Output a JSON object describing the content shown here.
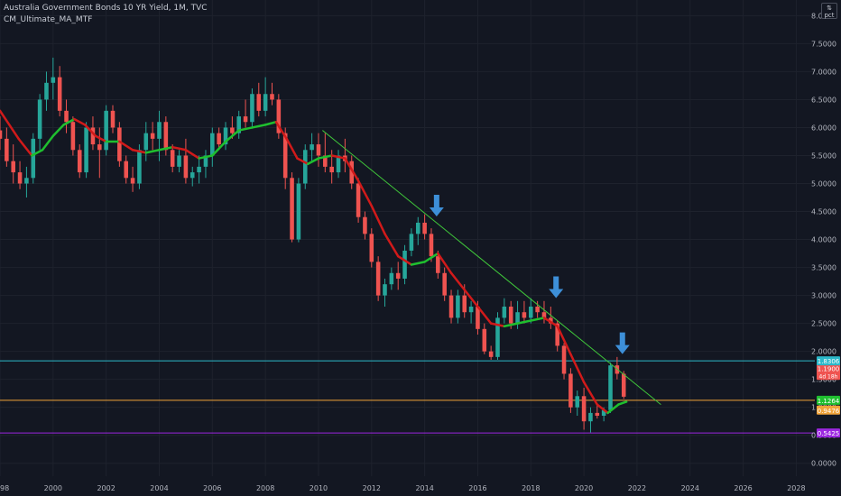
{
  "chart_data": {
    "type": "candlestick",
    "title": "Australia Government Bonds 10 YR Yield, 1M, TVC",
    "indicator_label": "CM_Ultimate_MA_MTF",
    "unit_badge": {
      "symbol": "⇅",
      "text": "pct"
    },
    "x_tick_labels": [
      "1998",
      "2000",
      "2002",
      "2004",
      "2006",
      "2008",
      "2010",
      "2012",
      "2014",
      "2016",
      "2018",
      "2020",
      "2022",
      "2024",
      "2026",
      "2028"
    ],
    "y_tick_labels": [
      "0.0000",
      "0.5000",
      "1.0000",
      "1.5000",
      "2.0000",
      "2.5000",
      "3.0000",
      "3.5000",
      "4.0000",
      "4.5000",
      "5.0000",
      "5.5000",
      "6.0000",
      "6.5000",
      "7.0000",
      "7.5000",
      "8.0000"
    ],
    "xlim": [
      1998.0,
      2028.7
    ],
    "ylim": [
      -0.23,
      8.28
    ],
    "colors": {
      "background": "#131722",
      "grid": "#1e222d",
      "up": "#26a69a",
      "down": "#ef5350",
      "ma_up": "#1fbf2f",
      "ma_down": "#d11a1a",
      "trendline": "#3fc43a",
      "arrow": "#3d8fd8",
      "axis_text": "#b2b5be"
    },
    "candles": [
      {
        "t": 1998.0,
        "o": 5.95,
        "h": 6.2,
        "l": 5.6,
        "c": 5.8
      },
      {
        "t": 1998.25,
        "o": 5.8,
        "h": 6.0,
        "l": 5.3,
        "c": 5.4
      },
      {
        "t": 1998.5,
        "o": 5.4,
        "h": 5.7,
        "l": 5.0,
        "c": 5.2
      },
      {
        "t": 1998.75,
        "o": 5.2,
        "h": 5.4,
        "l": 4.9,
        "c": 5.0
      },
      {
        "t": 1999.0,
        "o": 5.0,
        "h": 5.3,
        "l": 4.75,
        "c": 5.1
      },
      {
        "t": 1999.25,
        "o": 5.1,
        "h": 5.9,
        "l": 5.0,
        "c": 5.8
      },
      {
        "t": 1999.5,
        "o": 5.8,
        "h": 6.6,
        "l": 5.6,
        "c": 6.5
      },
      {
        "t": 1999.75,
        "o": 6.5,
        "h": 7.0,
        "l": 6.3,
        "c": 6.8
      },
      {
        "t": 2000.0,
        "o": 6.8,
        "h": 7.25,
        "l": 6.5,
        "c": 6.9
      },
      {
        "t": 2000.25,
        "o": 6.9,
        "h": 7.1,
        "l": 6.2,
        "c": 6.3
      },
      {
        "t": 2000.5,
        "o": 6.3,
        "h": 6.5,
        "l": 5.9,
        "c": 6.1
      },
      {
        "t": 2000.75,
        "o": 6.1,
        "h": 6.2,
        "l": 5.5,
        "c": 5.6
      },
      {
        "t": 2001.0,
        "o": 5.6,
        "h": 5.7,
        "l": 5.1,
        "c": 5.2
      },
      {
        "t": 2001.25,
        "o": 5.2,
        "h": 6.1,
        "l": 5.1,
        "c": 6.0
      },
      {
        "t": 2001.5,
        "o": 6.0,
        "h": 6.2,
        "l": 5.6,
        "c": 5.7
      },
      {
        "t": 2001.75,
        "o": 5.7,
        "h": 6.0,
        "l": 5.1,
        "c": 5.6
      },
      {
        "t": 2002.0,
        "o": 5.6,
        "h": 6.4,
        "l": 5.5,
        "c": 6.3
      },
      {
        "t": 2002.25,
        "o": 6.3,
        "h": 6.4,
        "l": 5.9,
        "c": 6.0
      },
      {
        "t": 2002.5,
        "o": 6.0,
        "h": 6.1,
        "l": 5.3,
        "c": 5.4
      },
      {
        "t": 2002.75,
        "o": 5.4,
        "h": 5.5,
        "l": 5.0,
        "c": 5.1
      },
      {
        "t": 2003.0,
        "o": 5.1,
        "h": 5.3,
        "l": 4.85,
        "c": 5.0
      },
      {
        "t": 2003.25,
        "o": 5.0,
        "h": 5.7,
        "l": 4.9,
        "c": 5.6
      },
      {
        "t": 2003.5,
        "o": 5.6,
        "h": 6.1,
        "l": 5.4,
        "c": 5.9
      },
      {
        "t": 2003.75,
        "o": 5.9,
        "h": 6.1,
        "l": 5.6,
        "c": 5.8
      },
      {
        "t": 2004.0,
        "o": 5.8,
        "h": 6.3,
        "l": 5.4,
        "c": 6.1
      },
      {
        "t": 2004.25,
        "o": 6.1,
        "h": 6.2,
        "l": 5.5,
        "c": 5.6
      },
      {
        "t": 2004.5,
        "o": 5.6,
        "h": 5.7,
        "l": 5.2,
        "c": 5.3
      },
      {
        "t": 2004.75,
        "o": 5.3,
        "h": 5.6,
        "l": 5.2,
        "c": 5.5
      },
      {
        "t": 2005.0,
        "o": 5.5,
        "h": 5.8,
        "l": 5.0,
        "c": 5.1
      },
      {
        "t": 2005.25,
        "o": 5.1,
        "h": 5.3,
        "l": 4.95,
        "c": 5.2
      },
      {
        "t": 2005.5,
        "o": 5.2,
        "h": 5.5,
        "l": 5.0,
        "c": 5.3
      },
      {
        "t": 2005.75,
        "o": 5.3,
        "h": 5.6,
        "l": 5.1,
        "c": 5.5
      },
      {
        "t": 2006.0,
        "o": 5.5,
        "h": 6.0,
        "l": 5.3,
        "c": 5.9
      },
      {
        "t": 2006.25,
        "o": 5.9,
        "h": 6.0,
        "l": 5.6,
        "c": 5.7
      },
      {
        "t": 2006.5,
        "o": 5.7,
        "h": 6.1,
        "l": 5.6,
        "c": 6.0
      },
      {
        "t": 2006.75,
        "o": 6.0,
        "h": 6.2,
        "l": 5.8,
        "c": 5.9
      },
      {
        "t": 2007.0,
        "o": 5.9,
        "h": 6.3,
        "l": 5.8,
        "c": 6.2
      },
      {
        "t": 2007.25,
        "o": 6.2,
        "h": 6.5,
        "l": 6.0,
        "c": 6.1
      },
      {
        "t": 2007.5,
        "o": 6.1,
        "h": 6.7,
        "l": 6.0,
        "c": 6.6
      },
      {
        "t": 2007.75,
        "o": 6.6,
        "h": 6.8,
        "l": 6.2,
        "c": 6.3
      },
      {
        "t": 2008.0,
        "o": 6.3,
        "h": 6.9,
        "l": 6.2,
        "c": 6.6
      },
      {
        "t": 2008.25,
        "o": 6.6,
        "h": 6.8,
        "l": 6.4,
        "c": 6.5
      },
      {
        "t": 2008.5,
        "o": 6.5,
        "h": 6.6,
        "l": 5.8,
        "c": 5.9
      },
      {
        "t": 2008.75,
        "o": 5.9,
        "h": 6.0,
        "l": 4.9,
        "c": 5.1
      },
      {
        "t": 2009.0,
        "o": 5.1,
        "h": 5.2,
        "l": 3.95,
        "c": 4.0
      },
      {
        "t": 2009.25,
        "o": 4.0,
        "h": 5.1,
        "l": 3.95,
        "c": 5.0
      },
      {
        "t": 2009.5,
        "o": 5.0,
        "h": 5.7,
        "l": 4.9,
        "c": 5.6
      },
      {
        "t": 2009.75,
        "o": 5.6,
        "h": 5.9,
        "l": 5.4,
        "c": 5.7
      },
      {
        "t": 2010.0,
        "o": 5.7,
        "h": 5.9,
        "l": 5.3,
        "c": 5.5
      },
      {
        "t": 2010.25,
        "o": 5.5,
        "h": 5.9,
        "l": 5.2,
        "c": 5.3
      },
      {
        "t": 2010.5,
        "o": 5.3,
        "h": 5.6,
        "l": 5.0,
        "c": 5.2
      },
      {
        "t": 2010.75,
        "o": 5.2,
        "h": 5.6,
        "l": 5.1,
        "c": 5.5
      },
      {
        "t": 2011.0,
        "o": 5.5,
        "h": 5.8,
        "l": 5.2,
        "c": 5.4
      },
      {
        "t": 2011.25,
        "o": 5.4,
        "h": 5.5,
        "l": 4.9,
        "c": 5.0
      },
      {
        "t": 2011.5,
        "o": 5.0,
        "h": 5.1,
        "l": 4.3,
        "c": 4.4
      },
      {
        "t": 2011.75,
        "o": 4.4,
        "h": 4.5,
        "l": 4.0,
        "c": 4.1
      },
      {
        "t": 2012.0,
        "o": 4.1,
        "h": 4.2,
        "l": 3.5,
        "c": 3.6
      },
      {
        "t": 2012.25,
        "o": 3.6,
        "h": 3.7,
        "l": 2.9,
        "c": 3.0
      },
      {
        "t": 2012.5,
        "o": 3.0,
        "h": 3.3,
        "l": 2.8,
        "c": 3.2
      },
      {
        "t": 2012.75,
        "o": 3.2,
        "h": 3.5,
        "l": 3.1,
        "c": 3.4
      },
      {
        "t": 2013.0,
        "o": 3.4,
        "h": 3.6,
        "l": 3.1,
        "c": 3.3
      },
      {
        "t": 2013.25,
        "o": 3.3,
        "h": 3.9,
        "l": 3.2,
        "c": 3.8
      },
      {
        "t": 2013.5,
        "o": 3.8,
        "h": 4.2,
        "l": 3.7,
        "c": 4.1
      },
      {
        "t": 2013.75,
        "o": 4.1,
        "h": 4.4,
        "l": 3.9,
        "c": 4.3
      },
      {
        "t": 2014.0,
        "o": 4.3,
        "h": 4.45,
        "l": 4.0,
        "c": 4.1
      },
      {
        "t": 2014.25,
        "o": 4.1,
        "h": 4.2,
        "l": 3.6,
        "c": 3.7
      },
      {
        "t": 2014.5,
        "o": 3.7,
        "h": 3.8,
        "l": 3.3,
        "c": 3.4
      },
      {
        "t": 2014.75,
        "o": 3.4,
        "h": 3.5,
        "l": 2.9,
        "c": 3.0
      },
      {
        "t": 2015.0,
        "o": 3.0,
        "h": 3.1,
        "l": 2.5,
        "c": 2.6
      },
      {
        "t": 2015.25,
        "o": 2.6,
        "h": 3.1,
        "l": 2.5,
        "c": 3.0
      },
      {
        "t": 2015.5,
        "o": 3.0,
        "h": 3.2,
        "l": 2.6,
        "c": 2.7
      },
      {
        "t": 2015.75,
        "o": 2.7,
        "h": 2.9,
        "l": 2.5,
        "c": 2.8
      },
      {
        "t": 2016.0,
        "o": 2.8,
        "h": 2.9,
        "l": 2.3,
        "c": 2.4
      },
      {
        "t": 2016.25,
        "o": 2.4,
        "h": 2.5,
        "l": 1.95,
        "c": 2.0
      },
      {
        "t": 2016.5,
        "o": 2.0,
        "h": 2.1,
        "l": 1.85,
        "c": 1.9
      },
      {
        "t": 2016.75,
        "o": 1.9,
        "h": 2.7,
        "l": 1.85,
        "c": 2.6
      },
      {
        "t": 2017.0,
        "o": 2.6,
        "h": 2.95,
        "l": 2.5,
        "c": 2.8
      },
      {
        "t": 2017.25,
        "o": 2.8,
        "h": 2.9,
        "l": 2.4,
        "c": 2.5
      },
      {
        "t": 2017.5,
        "o": 2.5,
        "h": 2.9,
        "l": 2.4,
        "c": 2.7
      },
      {
        "t": 2017.75,
        "o": 2.7,
        "h": 2.9,
        "l": 2.5,
        "c": 2.6
      },
      {
        "t": 2018.0,
        "o": 2.6,
        "h": 2.95,
        "l": 2.5,
        "c": 2.8
      },
      {
        "t": 2018.25,
        "o": 2.8,
        "h": 2.9,
        "l": 2.6,
        "c": 2.7
      },
      {
        "t": 2018.5,
        "o": 2.7,
        "h": 2.9,
        "l": 2.5,
        "c": 2.6
      },
      {
        "t": 2018.75,
        "o": 2.6,
        "h": 2.8,
        "l": 2.4,
        "c": 2.5
      },
      {
        "t": 2019.0,
        "o": 2.5,
        "h": 2.55,
        "l": 2.0,
        "c": 2.1
      },
      {
        "t": 2019.25,
        "o": 2.1,
        "h": 2.15,
        "l": 1.5,
        "c": 1.6
      },
      {
        "t": 2019.5,
        "o": 1.6,
        "h": 1.7,
        "l": 0.9,
        "c": 1.0
      },
      {
        "t": 2019.75,
        "o": 1.0,
        "h": 1.3,
        "l": 0.85,
        "c": 1.2
      },
      {
        "t": 2020.0,
        "o": 1.2,
        "h": 1.35,
        "l": 0.6,
        "c": 0.75
      },
      {
        "t": 2020.25,
        "o": 0.75,
        "h": 1.0,
        "l": 0.55,
        "c": 0.9
      },
      {
        "t": 2020.5,
        "o": 0.9,
        "h": 1.05,
        "l": 0.8,
        "c": 0.85
      },
      {
        "t": 2020.75,
        "o": 0.85,
        "h": 1.0,
        "l": 0.75,
        "c": 0.95
      },
      {
        "t": 2021.0,
        "o": 0.95,
        "h": 1.8,
        "l": 0.9,
        "c": 1.75
      },
      {
        "t": 2021.25,
        "o": 1.75,
        "h": 1.9,
        "l": 1.5,
        "c": 1.6
      },
      {
        "t": 2021.5,
        "o": 1.6,
        "h": 1.65,
        "l": 1.15,
        "c": 1.19
      }
    ],
    "moving_average": [
      {
        "t": 1998.0,
        "v": 6.3
      },
      {
        "t": 1998.7,
        "v": 5.8
      },
      {
        "t": 1999.2,
        "v": 5.5
      },
      {
        "t": 1999.6,
        "v": 5.6
      },
      {
        "t": 2000.0,
        "v": 5.85
      },
      {
        "t": 2000.4,
        "v": 6.05
      },
      {
        "t": 2000.8,
        "v": 6.15
      },
      {
        "t": 2001.2,
        "v": 6.05
      },
      {
        "t": 2001.6,
        "v": 5.85
      },
      {
        "t": 2002.0,
        "v": 5.75
      },
      {
        "t": 2002.5,
        "v": 5.75
      },
      {
        "t": 2003.0,
        "v": 5.6
      },
      {
        "t": 2003.5,
        "v": 5.55
      },
      {
        "t": 2004.0,
        "v": 5.6
      },
      {
        "t": 2004.5,
        "v": 5.65
      },
      {
        "t": 2005.0,
        "v": 5.6
      },
      {
        "t": 2005.5,
        "v": 5.45
      },
      {
        "t": 2006.0,
        "v": 5.5
      },
      {
        "t": 2006.5,
        "v": 5.75
      },
      {
        "t": 2007.0,
        "v": 5.95
      },
      {
        "t": 2007.5,
        "v": 6.0
      },
      {
        "t": 2008.0,
        "v": 6.05
      },
      {
        "t": 2008.4,
        "v": 6.1
      },
      {
        "t": 2008.8,
        "v": 5.8
      },
      {
        "t": 2009.2,
        "v": 5.45
      },
      {
        "t": 2009.6,
        "v": 5.35
      },
      {
        "t": 2010.0,
        "v": 5.45
      },
      {
        "t": 2010.5,
        "v": 5.5
      },
      {
        "t": 2011.0,
        "v": 5.45
      },
      {
        "t": 2011.5,
        "v": 5.05
      },
      {
        "t": 2012.0,
        "v": 4.6
      },
      {
        "t": 2012.5,
        "v": 4.1
      },
      {
        "t": 2013.0,
        "v": 3.7
      },
      {
        "t": 2013.5,
        "v": 3.55
      },
      {
        "t": 2014.0,
        "v": 3.6
      },
      {
        "t": 2014.5,
        "v": 3.75
      },
      {
        "t": 2015.0,
        "v": 3.4
      },
      {
        "t": 2015.5,
        "v": 3.1
      },
      {
        "t": 2016.0,
        "v": 2.8
      },
      {
        "t": 2016.5,
        "v": 2.5
      },
      {
        "t": 2017.0,
        "v": 2.45
      },
      {
        "t": 2017.5,
        "v": 2.5
      },
      {
        "t": 2018.0,
        "v": 2.55
      },
      {
        "t": 2018.5,
        "v": 2.6
      },
      {
        "t": 2019.0,
        "v": 2.45
      },
      {
        "t": 2019.5,
        "v": 1.95
      },
      {
        "t": 2020.0,
        "v": 1.45
      },
      {
        "t": 2020.5,
        "v": 1.05
      },
      {
        "t": 2020.9,
        "v": 0.9
      },
      {
        "t": 2021.3,
        "v": 1.05
      },
      {
        "t": 2021.6,
        "v": 1.1
      }
    ],
    "trendline": {
      "x1": 2010.15,
      "y1": 5.95,
      "x2": 2022.9,
      "y2": 1.05
    },
    "arrows": [
      {
        "t": 2014.45,
        "y": 4.38
      },
      {
        "t": 2018.95,
        "y": 2.92
      },
      {
        "t": 2021.45,
        "y": 1.92
      }
    ],
    "horizontal_lines": [
      {
        "y": 1.8306,
        "color": "#2bb8c9",
        "label": "1.8306"
      },
      {
        "y": 1.1264,
        "color": "#f0a33a",
        "label": "1.1264"
      },
      {
        "y": 0.5425,
        "color": "#9c27e0",
        "label": "0.5425"
      }
    ],
    "price_tags": [
      {
        "y": 1.7,
        "label": "1.1900",
        "sublabel": "4d 18h",
        "bg": "#ef5350"
      },
      {
        "y": 1.1264,
        "label": "1.1264",
        "bg": "#1fbf2f"
      },
      {
        "y": 0.95,
        "label": "0.9476",
        "bg": "#f0a33a"
      },
      {
        "y": 0.5425,
        "label": "0.5425",
        "bg": "#9c27e0"
      },
      {
        "y": 1.8306,
        "label": "1.8306",
        "bg": "#2bb8c9"
      }
    ]
  }
}
